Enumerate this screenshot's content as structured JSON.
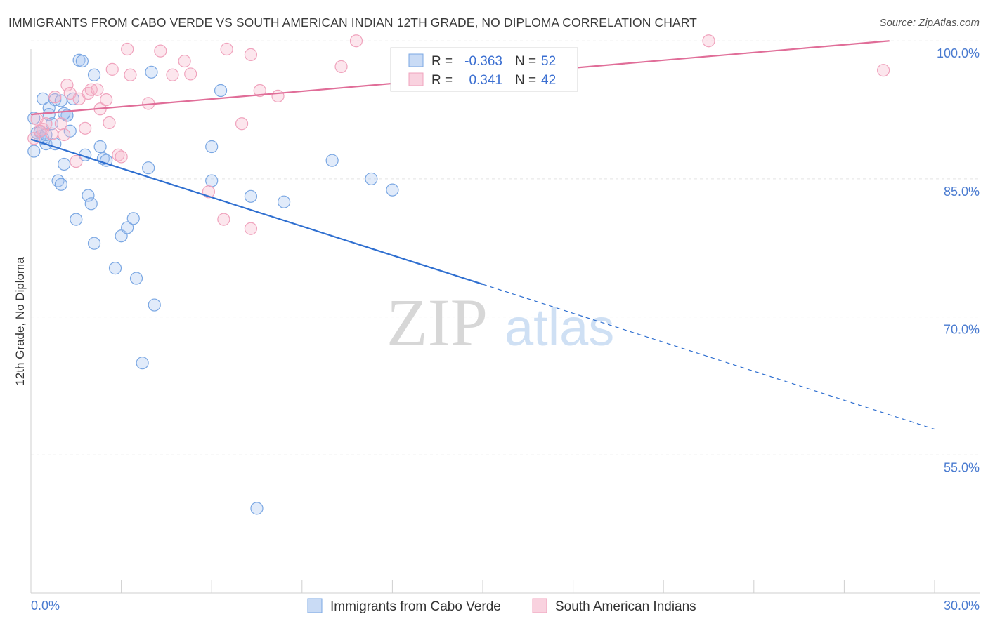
{
  "header": {
    "title": "IMMIGRANTS FROM CABO VERDE VS SOUTH AMERICAN INDIAN 12TH GRADE, NO DIPLOMA CORRELATION CHART",
    "source": "Source: ZipAtlas.com"
  },
  "watermark": {
    "zip": "ZIP",
    "atlas": "atlas"
  },
  "chart_data": {
    "type": "scatter",
    "title": "IMMIGRANTS FROM CABO VERDE VS SOUTH AMERICAN INDIAN 12TH GRADE, NO DIPLOMA CORRELATION CHART",
    "xlabel": "",
    "ylabel": "12th Grade, No Diploma",
    "xlim": [
      0,
      30
    ],
    "ylim": [
      40,
      102
    ],
    "x_tick_labels": [
      "0.0%",
      "30.0%"
    ],
    "y_ticks": [
      100,
      85,
      70,
      55
    ],
    "y_tick_labels": [
      "100.0%",
      "85.0%",
      "70.0%",
      "55.0%"
    ],
    "legend_position": "bottom-center",
    "stats_legend": [
      {
        "r_label": "R =",
        "r_value": "-0.363",
        "n_label": "N =",
        "n_value": "52",
        "color": "#a9c6f0"
      },
      {
        "r_label": "R =",
        "r_value": "0.341",
        "n_label": "N =",
        "n_value": "42",
        "color": "#f5b7cb"
      }
    ],
    "series": [
      {
        "name": "Immigrants from Cabo Verde",
        "color": "#7aa7e3",
        "line_color": "#2f6fd0",
        "trend": {
          "x0": 0,
          "y0": 89.3,
          "x1": 30,
          "y1": 57.8,
          "solid_until_x": 15
        },
        "points": [
          [
            0.1,
            91.6
          ],
          [
            0.1,
            88.0
          ],
          [
            0.2,
            90.0
          ],
          [
            0.3,
            90.1
          ],
          [
            0.4,
            89.4
          ],
          [
            0.4,
            93.7
          ],
          [
            0.5,
            88.8
          ],
          [
            0.6,
            92.7
          ],
          [
            0.6,
            92.0
          ],
          [
            0.7,
            91.0
          ],
          [
            0.8,
            88.8
          ],
          [
            0.8,
            93.6
          ],
          [
            0.9,
            84.8
          ],
          [
            1.0,
            84.4
          ],
          [
            1.1,
            86.6
          ],
          [
            1.2,
            91.9
          ],
          [
            1.2,
            91.9
          ],
          [
            1.3,
            90.2
          ],
          [
            1.4,
            93.7
          ],
          [
            1.5,
            80.6
          ],
          [
            1.6,
            97.9
          ],
          [
            1.7,
            97.8
          ],
          [
            1.8,
            87.6
          ],
          [
            1.9,
            83.2
          ],
          [
            2.0,
            82.3
          ],
          [
            2.1,
            78.0
          ],
          [
            2.1,
            96.3
          ],
          [
            2.3,
            88.5
          ],
          [
            2.4,
            87.2
          ],
          [
            2.5,
            87.0
          ],
          [
            2.8,
            75.3
          ],
          [
            3.0,
            78.8
          ],
          [
            3.2,
            79.7
          ],
          [
            3.4,
            80.7
          ],
          [
            3.5,
            74.2
          ],
          [
            3.7,
            65.0
          ],
          [
            3.9,
            86.2
          ],
          [
            4.0,
            96.6
          ],
          [
            4.1,
            71.3
          ],
          [
            6.0,
            84.8
          ],
          [
            6.0,
            88.5
          ],
          [
            6.3,
            94.6
          ],
          [
            7.3,
            83.1
          ],
          [
            7.5,
            49.2
          ],
          [
            8.4,
            82.5
          ],
          [
            10.0,
            87.0
          ],
          [
            11.3,
            85.0
          ],
          [
            12.0,
            83.8
          ],
          [
            1.0,
            93.5
          ],
          [
            0.3,
            89.6
          ],
          [
            0.5,
            89.8
          ],
          [
            1.1,
            92.1
          ]
        ]
      },
      {
        "name": "South American Indians",
        "color": "#f0a3bd",
        "line_color": "#e06d98",
        "trend": {
          "x0": 0,
          "y0": 92.0,
          "x1": 28.5,
          "y1": 100.0,
          "solid_until_x": 28.5
        },
        "points": [
          [
            0.1,
            89.4
          ],
          [
            0.2,
            91.5
          ],
          [
            0.4,
            90.4
          ],
          [
            0.5,
            91.0
          ],
          [
            0.7,
            89.9
          ],
          [
            0.8,
            93.9
          ],
          [
            1.0,
            91.0
          ],
          [
            1.1,
            89.8
          ],
          [
            1.2,
            95.2
          ],
          [
            1.3,
            94.3
          ],
          [
            1.5,
            86.9
          ],
          [
            1.6,
            93.7
          ],
          [
            1.8,
            90.5
          ],
          [
            1.9,
            94.3
          ],
          [
            2.0,
            94.7
          ],
          [
            2.2,
            94.7
          ],
          [
            2.3,
            92.6
          ],
          [
            2.5,
            93.6
          ],
          [
            2.6,
            91.1
          ],
          [
            2.7,
            96.9
          ],
          [
            2.9,
            87.6
          ],
          [
            3.0,
            87.4
          ],
          [
            3.2,
            99.1
          ],
          [
            3.3,
            96.3
          ],
          [
            3.9,
            93.2
          ],
          [
            4.3,
            98.9
          ],
          [
            4.7,
            96.3
          ],
          [
            5.1,
            97.8
          ],
          [
            5.3,
            96.4
          ],
          [
            5.9,
            83.6
          ],
          [
            6.4,
            80.6
          ],
          [
            6.5,
            99.1
          ],
          [
            7.0,
            91.0
          ],
          [
            7.3,
            79.6
          ],
          [
            7.3,
            98.5
          ],
          [
            7.6,
            94.6
          ],
          [
            8.2,
            94.0
          ],
          [
            10.3,
            97.2
          ],
          [
            10.8,
            100.0
          ],
          [
            22.5,
            100.0
          ],
          [
            28.3,
            96.8
          ],
          [
            0.3,
            90.2
          ]
        ]
      }
    ]
  }
}
